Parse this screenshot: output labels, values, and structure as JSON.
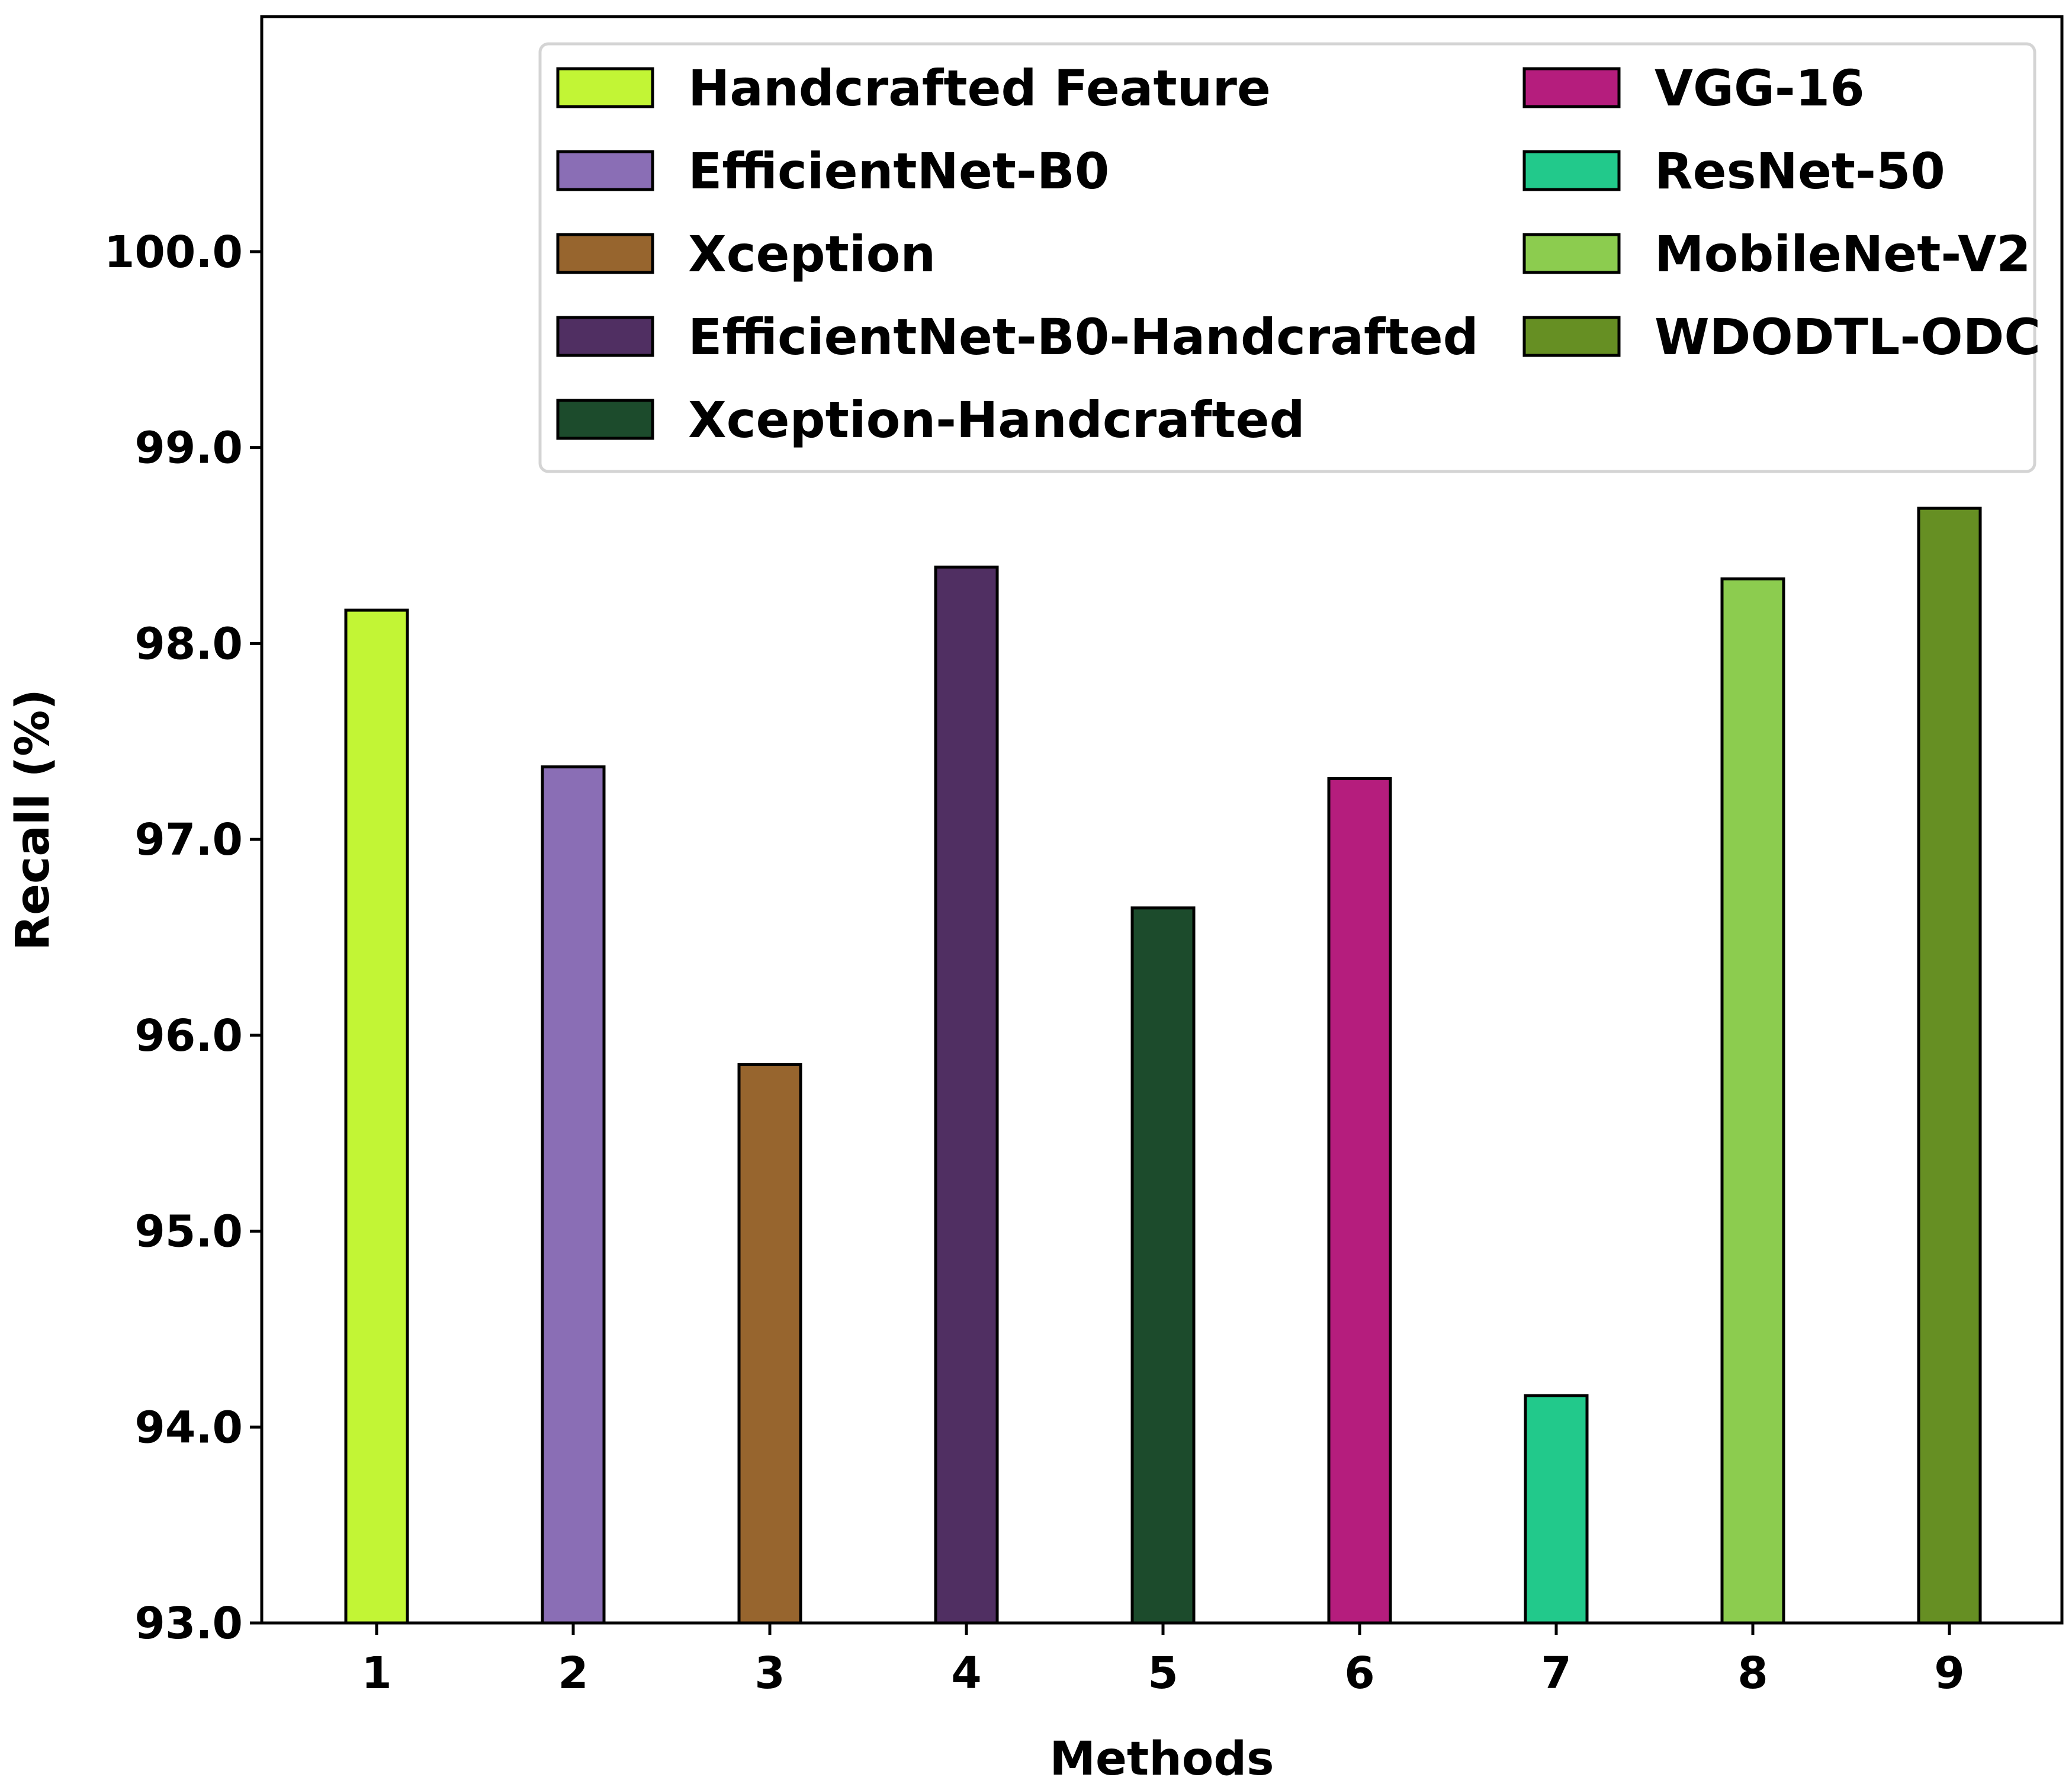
{
  "chart_data": {
    "type": "bar",
    "title": "",
    "xlabel": "Methods",
    "ylabel": "Recall (%)",
    "ylim": [
      93.0,
      101.2
    ],
    "yticks": [
      93.0,
      94.0,
      95.0,
      96.0,
      97.0,
      98.0,
      99.0,
      100.0
    ],
    "ytick_labels": [
      "93.0",
      "94.0",
      "95.0",
      "96.0",
      "97.0",
      "98.0",
      "99.0",
      "100.0"
    ],
    "categories": [
      "1",
      "2",
      "3",
      "4",
      "5",
      "6",
      "7",
      "8",
      "9"
    ],
    "grid": false,
    "legend_position": "top-right",
    "series": [
      {
        "name": "Handcrafted Feature",
        "value": 98.17,
        "color": "#c2f535"
      },
      {
        "name": "EfficientNet-B0",
        "value": 97.37,
        "color": "#8a6eb5"
      },
      {
        "name": "Xception",
        "value": 95.85,
        "color": "#97652e"
      },
      {
        "name": "EfficientNet-B0-Handcrafted",
        "value": 98.39,
        "color": "#502f62"
      },
      {
        "name": "Xception-Handcrafted",
        "value": 96.65,
        "color": "#1c4b2c"
      },
      {
        "name": "VGG-16",
        "value": 97.31,
        "color": "#b51d7d"
      },
      {
        "name": "ResNet-50",
        "value": 94.16,
        "color": "#22c98b"
      },
      {
        "name": "MobileNet-V2",
        "value": 98.33,
        "color": "#8ccc4f"
      },
      {
        "name": "WDODTL-ODC",
        "value": 98.69,
        "color": "#668f23"
      }
    ]
  }
}
